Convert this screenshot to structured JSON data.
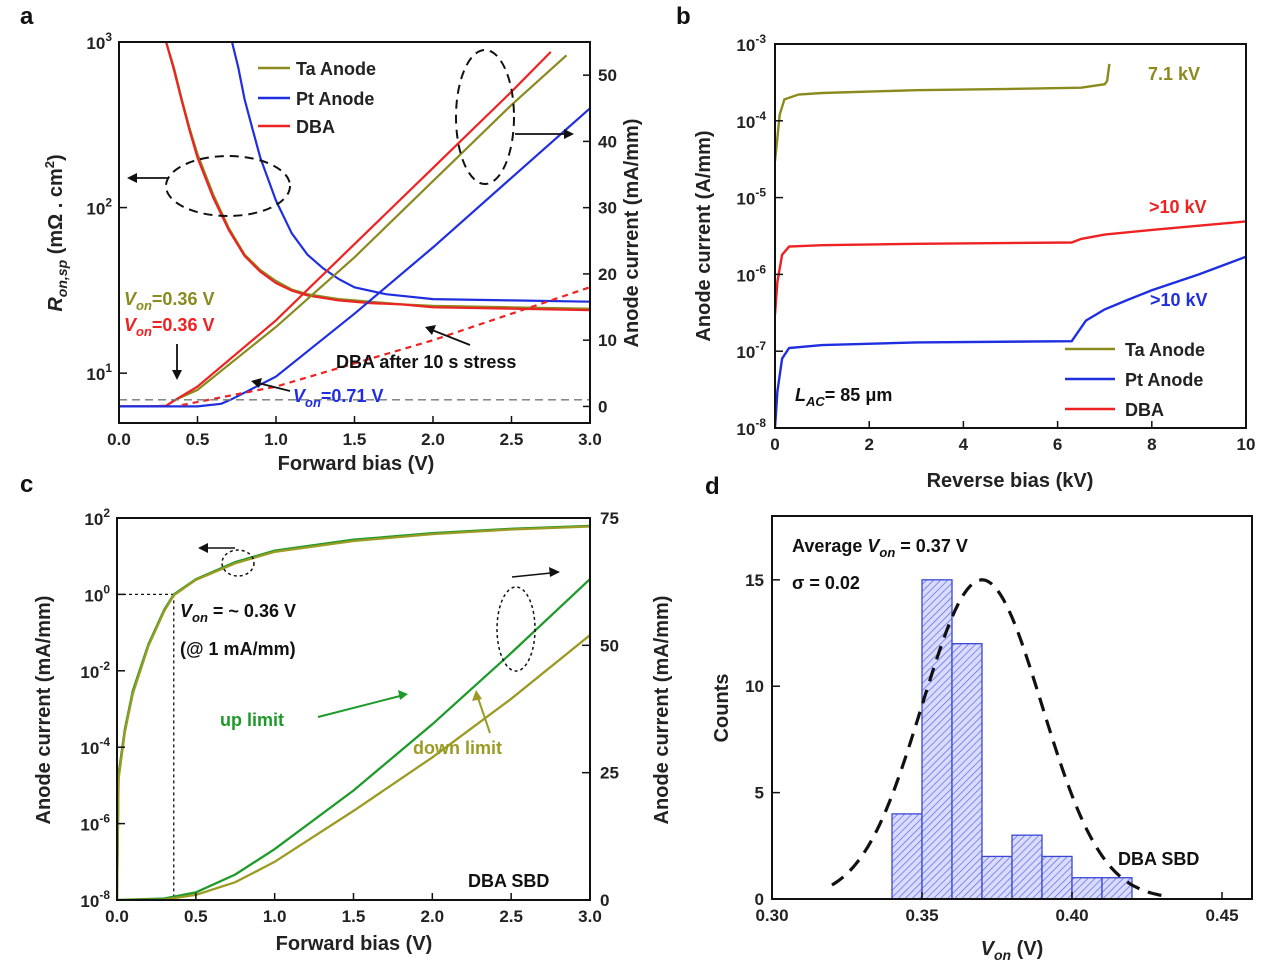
{
  "colors": {
    "ta_anode": "#8a8a1e",
    "pt_anode": "#1f2fe0",
    "dba": "#ee2222",
    "green": "#1e9a2a",
    "olive": "#9b9b24",
    "hist_fill": "#c9ccff",
    "hist_edge": "#3a47d6",
    "black": "#111111"
  },
  "chart_data": [
    {
      "panel": "a",
      "type": "line",
      "xlabel": "Forward bias (V)",
      "ylabel_left": "R",
      "ylabel_left_sub": "on,sp",
      "ylabel_left_units": " (mΩ . cm",
      "ylabel_left_sup": "2",
      "ylabel_left_close": ")",
      "ylabel_right": "Anode current (mA/mm)",
      "xlim": [
        0,
        3
      ],
      "ylim_left_log": [
        5,
        1000
      ],
      "ylim_right": [
        -2.5,
        55
      ],
      "x_ticks": [
        "0.0",
        "0.5",
        "1.0",
        "1.5",
        "2.0",
        "2.5",
        "3.0"
      ],
      "y_left_ticks": [
        {
          "mant": "10",
          "exp": "1",
          "value": 10
        },
        {
          "mant": "10",
          "exp": "2",
          "value": 100
        },
        {
          "mant": "10",
          "exp": "3",
          "value": 1000
        }
      ],
      "y_right_ticks": [
        "0",
        "10",
        "20",
        "30",
        "40",
        "50"
      ],
      "legend": [
        "Ta Anode",
        "Pt Anode",
        "DBA"
      ],
      "von_labels": [
        {
          "prefix": "V",
          "sub": "on",
          "text": "=0.36 V",
          "series": "Ta Anode"
        },
        {
          "prefix": "V",
          "sub": "on",
          "text": "=0.36 V",
          "series": "DBA"
        },
        {
          "prefix": "V",
          "sub": "on",
          "text": "=0.71 V",
          "series": "Pt Anode"
        }
      ],
      "stress_annotation": "DBA after 10 s stress",
      "series": [
        {
          "name": "Ta Anode",
          "kind": "Ron",
          "points": [
            [
              0.3,
              1000
            ],
            [
              0.35,
              700
            ],
            [
              0.4,
              450
            ],
            [
              0.45,
              300
            ],
            [
              0.5,
              210
            ],
            [
              0.6,
              120
            ],
            [
              0.7,
              75
            ],
            [
              0.8,
              52
            ],
            [
              0.9,
              42
            ],
            [
              1.0,
              36
            ],
            [
              1.1,
              32
            ],
            [
              1.2,
              30
            ],
            [
              1.4,
              28
            ],
            [
              1.6,
              27
            ],
            [
              1.8,
              26
            ],
            [
              2.0,
              25.5
            ],
            [
              2.5,
              25
            ],
            [
              3.0,
              24.5
            ]
          ]
        },
        {
          "name": "Pt Anode",
          "kind": "Ron",
          "points": [
            [
              0.72,
              1000
            ],
            [
              0.76,
              700
            ],
            [
              0.8,
              450
            ],
            [
              0.85,
              300
            ],
            [
              0.9,
              200
            ],
            [
              1.0,
              110
            ],
            [
              1.1,
              70
            ],
            [
              1.2,
              52
            ],
            [
              1.3,
              43
            ],
            [
              1.4,
              37
            ],
            [
              1.5,
              33
            ],
            [
              1.7,
              30
            ],
            [
              2.0,
              28
            ],
            [
              2.5,
              27.5
            ],
            [
              3.0,
              27
            ]
          ]
        },
        {
          "name": "DBA",
          "kind": "Ron",
          "points": [
            [
              0.3,
              1000
            ],
            [
              0.35,
              680
            ],
            [
              0.4,
              440
            ],
            [
              0.45,
              290
            ],
            [
              0.5,
              200
            ],
            [
              0.6,
              115
            ],
            [
              0.7,
              73
            ],
            [
              0.8,
              51
            ],
            [
              0.9,
              41
            ],
            [
              1.0,
              35
            ],
            [
              1.1,
              31.5
            ],
            [
              1.2,
              29.5
            ],
            [
              1.4,
              27.5
            ],
            [
              1.6,
              26.5
            ],
            [
              1.8,
              26
            ],
            [
              2.0,
              25
            ],
            [
              2.5,
              24.5
            ],
            [
              3.0,
              24
            ]
          ]
        },
        {
          "name": "Ta Anode",
          "kind": "I",
          "points": [
            [
              0,
              0
            ],
            [
              0.2,
              0
            ],
            [
              0.3,
              0.1
            ],
            [
              0.36,
              1
            ],
            [
              0.5,
              2.5
            ],
            [
              1.0,
              12
            ],
            [
              1.5,
              22.5
            ],
            [
              2.0,
              34
            ],
            [
              2.5,
              45.5
            ],
            [
              2.85,
              53
            ]
          ]
        },
        {
          "name": "DBA",
          "kind": "I",
          "points": [
            [
              0,
              0
            ],
            [
              0.2,
              0
            ],
            [
              0.3,
              0.1
            ],
            [
              0.36,
              1
            ],
            [
              0.5,
              3
            ],
            [
              1.0,
              13
            ],
            [
              1.5,
              24.5
            ],
            [
              2.0,
              36
            ],
            [
              2.5,
              47.5
            ],
            [
              2.75,
              53.5
            ]
          ]
        },
        {
          "name": "Pt Anode",
          "kind": "I",
          "points": [
            [
              0,
              0
            ],
            [
              0.5,
              0
            ],
            [
              0.65,
              0.4
            ],
            [
              0.71,
              1
            ],
            [
              1.0,
              4.5
            ],
            [
              1.5,
              14
            ],
            [
              2.0,
              24
            ],
            [
              2.5,
              34.5
            ],
            [
              3.0,
              45
            ]
          ]
        },
        {
          "name": "DBA after 10 s stress",
          "kind": "I",
          "points": [
            [
              0.4,
              0.2
            ],
            [
              1.0,
              3
            ],
            [
              1.5,
              6.5
            ],
            [
              2.0,
              10
            ],
            [
              2.5,
              14
            ],
            [
              3.0,
              18
            ]
          ]
        },
        {
          "name": "baseline",
          "kind": "I",
          "points": [
            [
              0,
              1
            ],
            [
              3,
              1
            ]
          ]
        }
      ]
    },
    {
      "panel": "b",
      "type": "line",
      "xlabel": "Reverse bias (kV)",
      "ylabel": "Anode current (A/mm)",
      "xlim": [
        0,
        10
      ],
      "ylim_log": [
        1e-08,
        0.001
      ],
      "x_ticks": [
        "0",
        "2",
        "4",
        "6",
        "8",
        "10"
      ],
      "y_ticks": [
        {
          "mant": "10",
          "exp": "-8"
        },
        {
          "mant": "10",
          "exp": "-7"
        },
        {
          "mant": "10",
          "exp": "-6"
        },
        {
          "mant": "10",
          "exp": "-5"
        },
        {
          "mant": "10",
          "exp": "-4"
        },
        {
          "mant": "10",
          "exp": "-3"
        }
      ],
      "legend": [
        "Ta Anode",
        "Pt Anode",
        "DBA"
      ],
      "annotations": [
        {
          "text": "7.1 kV",
          "series": "Ta Anode"
        },
        {
          "text": ">10 kV",
          "series": "DBA"
        },
        {
          "text": ">10 kV",
          "series": "Pt Anode"
        }
      ],
      "lac_label": {
        "prefix": "L",
        "sub": "AC",
        "text": "= 85 μm"
      },
      "series": [
        {
          "name": "Ta Anode",
          "points": [
            [
              0,
              3e-05
            ],
            [
              0.05,
              6e-05
            ],
            [
              0.1,
              0.00012
            ],
            [
              0.2,
              0.00019
            ],
            [
              0.5,
              0.00022
            ],
            [
              1,
              0.00023
            ],
            [
              3,
              0.00025
            ],
            [
              5,
              0.00026
            ],
            [
              6.5,
              0.00027
            ],
            [
              7.0,
              0.0003
            ],
            [
              7.05,
              0.00033
            ],
            [
              7.1,
              0.00055
            ]
          ]
        },
        {
          "name": "DBA",
          "points": [
            [
              0,
              3e-07
            ],
            [
              0.05,
              8e-07
            ],
            [
              0.15,
              1.8e-06
            ],
            [
              0.3,
              2.3e-06
            ],
            [
              1,
              2.4e-06
            ],
            [
              3,
              2.5e-06
            ],
            [
              6.3,
              2.6e-06
            ],
            [
              6.5,
              2.9e-06
            ],
            [
              7,
              3.3e-06
            ],
            [
              8,
              3.8e-06
            ],
            [
              9,
              4.3e-06
            ],
            [
              10,
              4.9e-06
            ]
          ]
        },
        {
          "name": "Pt Anode",
          "points": [
            [
              0,
              1e-08
            ],
            [
              0.05,
              3e-08
            ],
            [
              0.15,
              8e-08
            ],
            [
              0.3,
              1.1e-07
            ],
            [
              1,
              1.2e-07
            ],
            [
              3,
              1.3e-07
            ],
            [
              6.3,
              1.35e-07
            ],
            [
              6.6,
              2.5e-07
            ],
            [
              7,
              3.5e-07
            ],
            [
              7.5,
              4.7e-07
            ],
            [
              8,
              6.2e-07
            ],
            [
              9,
              1e-06
            ],
            [
              10,
              1.7e-06
            ]
          ]
        }
      ]
    },
    {
      "panel": "c",
      "type": "line",
      "xlabel": "Forward bias (V)",
      "ylabel_left": "Anode current (mA/mm)",
      "ylabel_right": "Anode current (mA/mm)",
      "xlim": [
        0,
        3
      ],
      "ylim_left_log": [
        1e-08,
        100
      ],
      "ylim_right": [
        0,
        75
      ],
      "x_ticks": [
        "0.0",
        "0.5",
        "1.0",
        "1.5",
        "2.0",
        "2.5",
        "3.0"
      ],
      "y_left_ticks": [
        {
          "mant": "10",
          "exp": "-8"
        },
        {
          "mant": "10",
          "exp": "-6"
        },
        {
          "mant": "10",
          "exp": "-4"
        },
        {
          "mant": "10",
          "exp": "-2"
        },
        {
          "mant": "10",
          "exp": "0"
        },
        {
          "mant": "10",
          "exp": "2"
        }
      ],
      "y_right_ticks": [
        "0",
        "25",
        "50",
        "75"
      ],
      "von_label": {
        "prefix": "V",
        "sub": "on",
        "text": " = ~ 0.36 V"
      },
      "von_note": "(@ 1 mA/mm)",
      "annotations": [
        "up limit",
        "down limit",
        "DBA SBD"
      ],
      "series": [
        {
          "name": "up limit",
          "kind": "log",
          "points": [
            [
              0,
              1e-08
            ],
            [
              0.01,
              2e-05
            ],
            [
              0.05,
              0.0003
            ],
            [
              0.1,
              0.003
            ],
            [
              0.2,
              0.05
            ],
            [
              0.3,
              0.4
            ],
            [
              0.36,
              1
            ],
            [
              0.5,
              2.5
            ],
            [
              0.75,
              7
            ],
            [
              1.0,
              14
            ],
            [
              1.5,
              27
            ],
            [
              2.0,
              40
            ],
            [
              2.5,
              52
            ],
            [
              3.0,
              62
            ]
          ]
        },
        {
          "name": "down limit",
          "kind": "log",
          "points": [
            [
              0,
              1e-08
            ],
            [
              0.01,
              1.5e-05
            ],
            [
              0.05,
              0.00025
            ],
            [
              0.1,
              0.0025
            ],
            [
              0.2,
              0.045
            ],
            [
              0.3,
              0.37
            ],
            [
              0.36,
              0.95
            ],
            [
              0.5,
              2.4
            ],
            [
              0.75,
              6.5
            ],
            [
              1.0,
              13
            ],
            [
              1.5,
              25
            ],
            [
              2.0,
              38
            ],
            [
              2.5,
              50
            ],
            [
              3.0,
              60
            ]
          ]
        },
        {
          "name": "up limit",
          "kind": "linear",
          "points": [
            [
              0,
              0
            ],
            [
              0.3,
              0.3
            ],
            [
              0.5,
              1.5
            ],
            [
              0.75,
              5
            ],
            [
              1.0,
              10
            ],
            [
              1.5,
              21.5
            ],
            [
              2.0,
              34.5
            ],
            [
              2.5,
              48.5
            ],
            [
              3.0,
              63
            ]
          ]
        },
        {
          "name": "down limit",
          "kind": "linear",
          "points": [
            [
              0,
              0
            ],
            [
              0.3,
              0.1
            ],
            [
              0.5,
              1
            ],
            [
              0.75,
              3.5
            ],
            [
              1.0,
              7.5
            ],
            [
              1.5,
              17.5
            ],
            [
              2.0,
              28
            ],
            [
              2.5,
              39.5
            ],
            [
              3.0,
              52
            ]
          ]
        }
      ]
    },
    {
      "panel": "d",
      "type": "bar",
      "xlabel_prefix": "V",
      "xlabel_sub": "on",
      "xlabel_units": " (V)",
      "ylabel": "Counts",
      "xlim": [
        0.3,
        0.46
      ],
      "ylim": [
        0,
        18
      ],
      "x_ticks": [
        "0.30",
        "0.35",
        "0.40",
        "0.45"
      ],
      "y_ticks": [
        "0",
        "5",
        "10",
        "15"
      ],
      "average_label": {
        "text": "Average ",
        "prefix": "V",
        "sub": "on",
        "value": " = 0.37 V"
      },
      "sigma_label": "σ = 0.02",
      "corner_label": "DBA SBD",
      "bins": [
        {
          "start": 0.34,
          "end": 0.35,
          "count": 4
        },
        {
          "start": 0.35,
          "end": 0.36,
          "count": 15
        },
        {
          "start": 0.36,
          "end": 0.37,
          "count": 12
        },
        {
          "start": 0.37,
          "end": 0.38,
          "count": 2
        },
        {
          "start": 0.38,
          "end": 0.39,
          "count": 3
        },
        {
          "start": 0.39,
          "end": 0.4,
          "count": 2
        },
        {
          "start": 0.4,
          "end": 0.41,
          "count": 1
        },
        {
          "start": 0.41,
          "end": 0.42,
          "count": 1
        }
      ],
      "fit": {
        "name": "Gaussian fit",
        "mean": 0.37,
        "sigma": 0.02,
        "peak": 15,
        "range": [
          0.32,
          0.43
        ]
      }
    }
  ]
}
